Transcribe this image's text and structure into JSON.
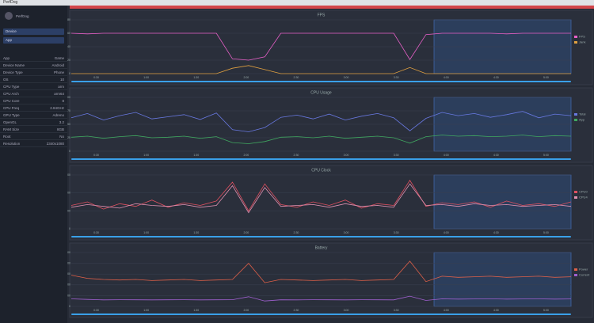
{
  "window_title": "PerfDog",
  "sidebar": {
    "user": "PerfDog",
    "device": "Device",
    "app": "App",
    "fields": [
      {
        "label": "App",
        "value": "Game"
      },
      {
        "label": "Device Name",
        "value": "Android"
      },
      {
        "label": "Device Type",
        "value": "Phone"
      },
      {
        "label": "OS",
        "value": "10"
      },
      {
        "label": "CPU Type",
        "value": "arm"
      },
      {
        "label": "CPU Arch",
        "value": "arm64"
      },
      {
        "label": "CPU Core",
        "value": "8"
      },
      {
        "label": "CPU Freq",
        "value": "2.84GHz"
      },
      {
        "label": "GPU Type",
        "value": "Adreno"
      },
      {
        "label": "OpenGL",
        "value": "3.2"
      },
      {
        "label": "RAM Size",
        "value": "8GB"
      },
      {
        "label": "Root",
        "value": "No"
      },
      {
        "label": "Resolution",
        "value": "2340x1080"
      }
    ]
  },
  "xtick_labels": [
    "0:30",
    "1:00",
    "1:30",
    "2:00",
    "2:30",
    "3:00",
    "3:30",
    "4:00",
    "4:30",
    "5:00"
  ],
  "panels": [
    {
      "title": "FPS",
      "ylim": [
        0,
        80
      ],
      "yticks": [
        0,
        20,
        40,
        60,
        80
      ],
      "series": [
        {
          "name": "FPS",
          "color": "#e860c8",
          "values": [
            60,
            59,
            60,
            60,
            60,
            60,
            60,
            60,
            60,
            60,
            22,
            20,
            25,
            60,
            60,
            60,
            60,
            60,
            60,
            60,
            60,
            21,
            58,
            60,
            60,
            60,
            60,
            59,
            60,
            60,
            60,
            60
          ]
        },
        {
          "name": "Jank",
          "color": "#e0a040",
          "values": [
            0,
            0,
            0,
            0,
            0,
            0,
            0,
            0,
            0,
            0,
            8,
            12,
            6,
            0,
            0,
            0,
            0,
            0,
            0,
            0,
            0,
            9,
            0,
            0,
            0,
            0,
            0,
            0,
            0,
            0,
            0,
            0
          ]
        }
      ]
    },
    {
      "title": "CPU Usage",
      "ylim": [
        0,
        100
      ],
      "yticks": [
        0,
        25,
        50,
        75,
        100
      ],
      "series": [
        {
          "name": "Total",
          "color": "#6878e0",
          "values": [
            62,
            70,
            58,
            66,
            72,
            60,
            64,
            68,
            59,
            71,
            40,
            36,
            44,
            63,
            67,
            60,
            69,
            58,
            65,
            70,
            62,
            38,
            61,
            72,
            66,
            70,
            63,
            68,
            74,
            62,
            69,
            66
          ]
        },
        {
          "name": "App",
          "color": "#40a860",
          "values": [
            26,
            28,
            24,
            27,
            29,
            25,
            26,
            28,
            24,
            27,
            16,
            14,
            18,
            26,
            27,
            25,
            28,
            24,
            26,
            28,
            25,
            15,
            27,
            30,
            28,
            29,
            27,
            28,
            30,
            27,
            29,
            28
          ]
        }
      ]
    },
    {
      "title": "CPU Clock",
      "ylim": [
        0,
        3000
      ],
      "yticks": [
        0,
        1000,
        2000,
        3000
      ],
      "series": [
        {
          "name": "CPU0",
          "color": "#e05060",
          "values": [
            1300,
            1500,
            1100,
            1400,
            1250,
            1600,
            1200,
            1450,
            1300,
            1550,
            2600,
            1000,
            2500,
            1350,
            1200,
            1500,
            1300,
            1600,
            1150,
            1400,
            1300,
            2700,
            1250,
            1450,
            1350,
            1500,
            1200,
            1550,
            1300,
            1400,
            1250,
            1500
          ]
        },
        {
          "name": "CPU4",
          "color": "#e090b0",
          "values": [
            1200,
            1350,
            1250,
            1150,
            1400,
            1300,
            1250,
            1350,
            1200,
            1300,
            2400,
            900,
            2300,
            1250,
            1300,
            1350,
            1200,
            1400,
            1250,
            1300,
            1200,
            2500,
            1300,
            1350,
            1250,
            1400,
            1300,
            1350,
            1250,
            1300,
            1350,
            1250
          ]
        }
      ]
    },
    {
      "title": "Battery",
      "ylim": [
        0,
        5000
      ],
      "yticks": [
        0,
        1000,
        2000,
        3000,
        4000,
        5000
      ],
      "series": [
        {
          "name": "Power",
          "color": "#e06048",
          "values": [
            2900,
            2600,
            2500,
            2450,
            2500,
            2400,
            2450,
            2500,
            2400,
            2450,
            2500,
            4000,
            2200,
            2500,
            2450,
            2400,
            2450,
            2500,
            2400,
            2450,
            2500,
            4200,
            2300,
            2800,
            2700,
            2750,
            2800,
            2700,
            2750,
            2800,
            2700,
            2750
          ]
        },
        {
          "name": "Current",
          "color": "#a060d0",
          "values": [
            700,
            650,
            600,
            620,
            610,
            600,
            610,
            620,
            600,
            610,
            620,
            900,
            500,
            610,
            600,
            620,
            610,
            600,
            620,
            610,
            600,
            950,
            550,
            700,
            680,
            690,
            700,
            680,
            690,
            700,
            680,
            690
          ]
        }
      ]
    }
  ]
}
